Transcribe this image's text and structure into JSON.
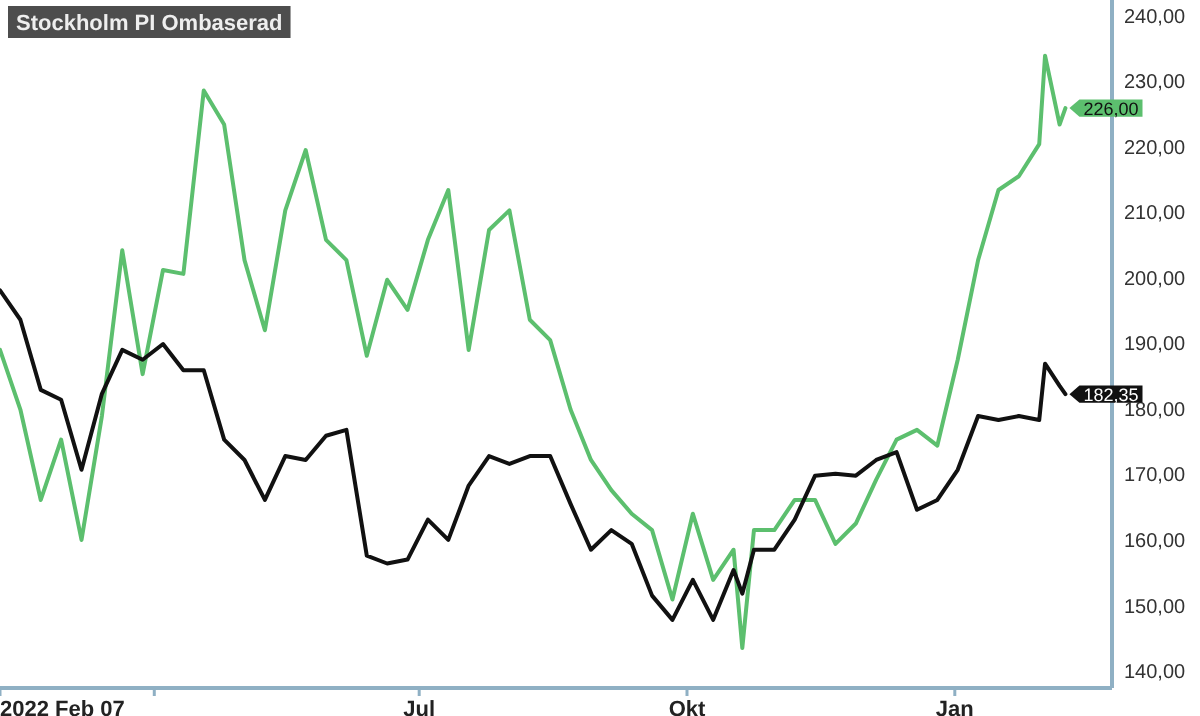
{
  "chart_data": {
    "type": "line",
    "x": [
      "2022-02-07",
      "2022-02-14",
      "2022-02-21",
      "2022-02-28",
      "2022-03-07",
      "2022-03-14",
      "2022-03-21",
      "2022-03-28",
      "2022-04-04",
      "2022-04-11",
      "2022-04-18",
      "2022-04-25",
      "2022-05-02",
      "2022-05-09",
      "2022-05-16",
      "2022-05-23",
      "2022-05-30",
      "2022-06-06",
      "2022-06-13",
      "2022-06-20",
      "2022-06-27",
      "2022-07-04",
      "2022-07-11",
      "2022-07-18",
      "2022-07-25",
      "2022-08-01",
      "2022-08-08",
      "2022-08-15",
      "2022-08-22",
      "2022-08-29",
      "2022-09-05",
      "2022-09-12",
      "2022-09-19",
      "2022-09-26",
      "2022-10-03",
      "2022-10-10",
      "2022-10-17",
      "2022-10-20",
      "2022-10-24",
      "2022-10-31",
      "2022-11-07",
      "2022-11-14",
      "2022-11-21",
      "2022-11-28",
      "2022-12-05",
      "2022-12-12",
      "2022-12-19",
      "2022-12-26",
      "2023-01-02",
      "2023-01-09",
      "2023-01-16",
      "2023-01-23",
      "2023-01-30",
      "2023-02-01",
      "2023-02-06",
      "2023-02-08"
    ],
    "series": [
      {
        "color": "#5cbf6e",
        "value_labels": [
          null,
          null,
          null,
          null,
          null,
          null,
          null,
          null,
          null,
          null,
          null,
          null,
          null,
          null,
          null,
          null,
          null,
          null,
          null,
          null,
          null,
          null,
          null,
          null,
          null,
          null,
          null,
          null,
          null,
          null,
          null,
          null,
          null,
          null,
          null,
          null,
          null,
          null,
          null,
          null,
          null,
          null,
          null,
          null,
          null,
          null,
          null,
          null,
          null,
          null,
          null,
          null,
          null,
          null,
          null,
          "226,00"
        ],
        "values": [
          189.1,
          180.0,
          166.2,
          175.4,
          160.1,
          179.0,
          204.3,
          185.4,
          201.3,
          200.7,
          228.7,
          223.5,
          202.8,
          192.1,
          210.4,
          219.6,
          205.9,
          202.8,
          188.2,
          199.8,
          195.2,
          205.9,
          213.5,
          189.1,
          207.4,
          210.4,
          193.7,
          190.6,
          180.0,
          172.3,
          167.7,
          164.1,
          161.6,
          151.0,
          164.1,
          154.0,
          158.6,
          143.6,
          161.6,
          161.6,
          166.2,
          166.2,
          159.5,
          162.6,
          169.3,
          175.4,
          176.9,
          174.5,
          187.6,
          202.8,
          213.5,
          215.6,
          220.5,
          234.0,
          223.5,
          226.0
        ]
      },
      {
        "name": "Stockholm PI Ombaserad",
        "color": "#111111",
        "value_labels": [
          null,
          null,
          null,
          null,
          null,
          null,
          null,
          null,
          null,
          null,
          null,
          null,
          null,
          null,
          null,
          null,
          null,
          null,
          null,
          null,
          null,
          null,
          null,
          null,
          null,
          null,
          null,
          null,
          null,
          null,
          null,
          null,
          null,
          null,
          null,
          null,
          null,
          null,
          null,
          null,
          null,
          null,
          null,
          null,
          null,
          null,
          null,
          null,
          null,
          null,
          null,
          null,
          null,
          null,
          null,
          "182,35"
        ],
        "values": [
          198.2,
          193.7,
          183.0,
          181.5,
          170.8,
          182.4,
          189.1,
          187.6,
          190.0,
          186.0,
          186.0,
          175.4,
          172.3,
          166.2,
          172.9,
          172.3,
          176.0,
          176.9,
          157.7,
          156.5,
          157.1,
          163.2,
          160.1,
          168.4,
          172.9,
          171.7,
          172.9,
          172.9,
          165.6,
          158.6,
          161.6,
          159.5,
          151.6,
          147.9,
          154.0,
          147.9,
          155.5,
          151.9,
          158.6,
          158.6,
          163.2,
          169.9,
          170.2,
          169.9,
          172.3,
          173.5,
          164.7,
          166.2,
          170.8,
          179.0,
          178.4,
          179.0,
          178.4,
          187.0,
          183.6,
          182.35
        ]
      }
    ],
    "xlim": [
      "2022-02-07",
      "2023-02-24"
    ],
    "xticks": [
      {
        "value": "2022-02-07",
        "label": "2022 Feb 07"
      },
      {
        "value": "2022-04-01",
        "label": null
      },
      {
        "value": "2022-07-01",
        "label": "Jul"
      },
      {
        "value": "2022-10-01",
        "label": "Okt"
      },
      {
        "value": "2023-01-01",
        "label": "Jan"
      }
    ],
    "ylim": [
      137.5,
      242.5
    ],
    "yticks": [
      {
        "value": 140,
        "label": "140,00"
      },
      {
        "value": 150,
        "label": "150,00"
      },
      {
        "value": 160,
        "label": "160,00"
      },
      {
        "value": 170,
        "label": "170,00"
      },
      {
        "value": 180,
        "label": "180,00"
      },
      {
        "value": 190,
        "label": "190,00"
      },
      {
        "value": 200,
        "label": "200,00"
      },
      {
        "value": 210,
        "label": "210,00"
      },
      {
        "value": 220,
        "label": "220,00"
      },
      {
        "value": 230,
        "label": "230,00"
      },
      {
        "value": 240,
        "label": "240,00"
      }
    ],
    "legend": "top left",
    "grid": false,
    "line_style": "solid",
    "marker": "none"
  }
}
